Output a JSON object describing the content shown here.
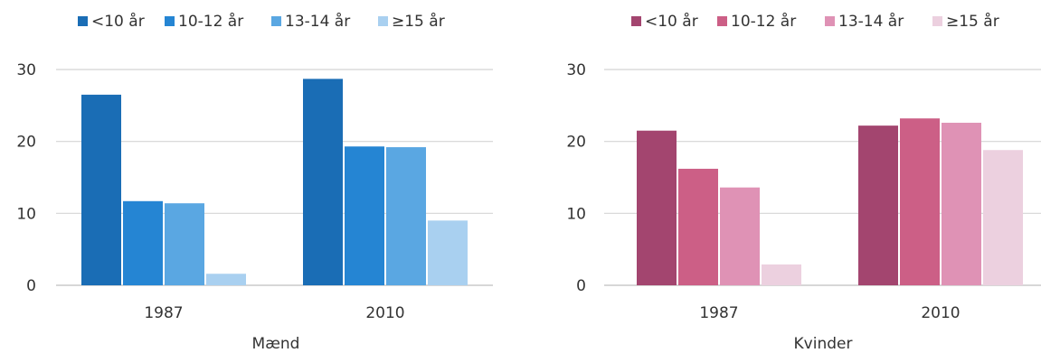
{
  "chart_data": [
    {
      "type": "bar",
      "xlabel": "Mænd",
      "ylabel": "",
      "ylim": [
        0,
        30
      ],
      "yticks": [
        0,
        10,
        20,
        30
      ],
      "grid": true,
      "legend_position": "top",
      "categories": [
        "1987",
        "2010"
      ],
      "series": [
        {
          "name": "<10 år",
          "color": "#1a6db5",
          "values": [
            26.5,
            28.7
          ]
        },
        {
          "name": "10-12 år",
          "color": "#2585d3",
          "values": [
            11.7,
            19.3
          ]
        },
        {
          "name": "13-14 år",
          "color": "#5aa7e2",
          "values": [
            11.4,
            19.2
          ]
        },
        {
          "name": "≥15 år",
          "color": "#a9d0f0",
          "values": [
            1.6,
            9.0
          ]
        }
      ]
    },
    {
      "type": "bar",
      "xlabel": "Kvinder",
      "ylabel": "",
      "ylim": [
        0,
        30
      ],
      "yticks": [
        0,
        10,
        20,
        30
      ],
      "grid": true,
      "legend_position": "top",
      "categories": [
        "1987",
        "2010"
      ],
      "series": [
        {
          "name": "<10 år",
          "color": "#a3456f",
          "values": [
            21.5,
            22.2
          ]
        },
        {
          "name": "10-12 år",
          "color": "#cc5f86",
          "values": [
            16.2,
            23.2
          ]
        },
        {
          "name": "13-14 år",
          "color": "#df92b5",
          "values": [
            13.6,
            22.6
          ]
        },
        {
          "name": "≥15 år",
          "color": "#ecd0df",
          "values": [
            2.9,
            18.8
          ]
        }
      ]
    }
  ]
}
